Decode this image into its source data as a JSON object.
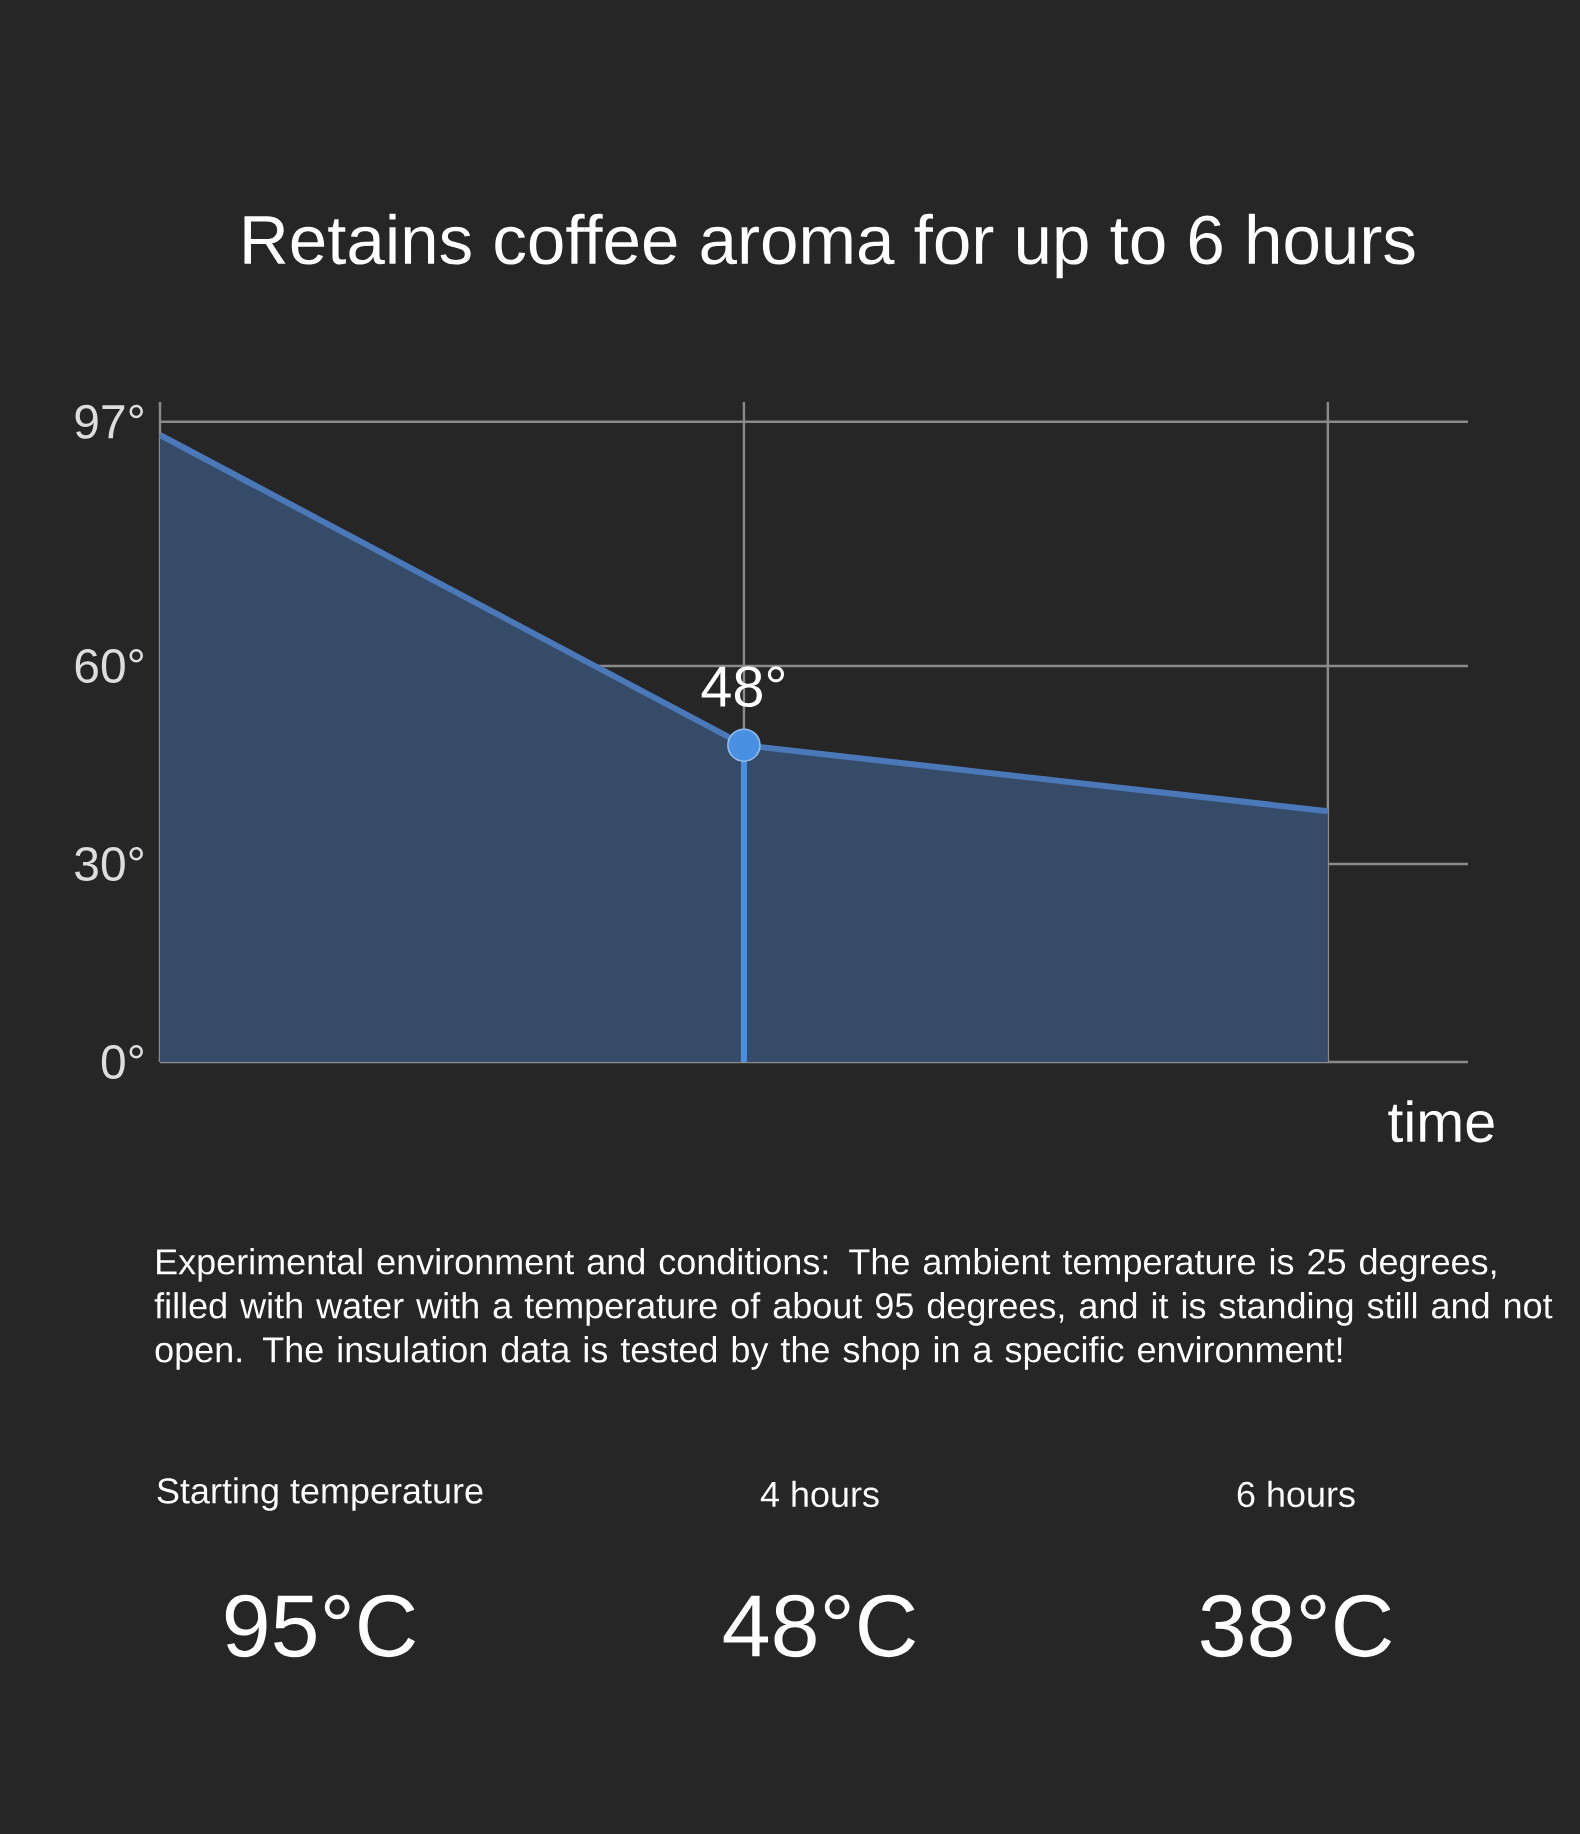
{
  "chart_data": {
    "type": "area",
    "title": "Retains coffee aroma for up to 6 hours",
    "xlabel": "time",
    "categories": [
      null,
      null,
      null
    ],
    "series": [
      {
        "color": "#4a78b8",
        "values": [
          95,
          48,
          38
        ],
        "value_labels": [
          null,
          "48°",
          null
        ]
      },
      {
        "type": "scatter",
        "color": "#4a90e2",
        "values": [
          null,
          48,
          null
        ],
        "marker": "circle"
      }
    ],
    "ylim": [
      0,
      100
    ],
    "yticks": [
      {
        "value": 0,
        "label": "0°"
      },
      {
        "value": 30,
        "label": "30°"
      },
      {
        "value": 60,
        "label": "60°"
      },
      {
        "value": 97,
        "label": "97°"
      }
    ],
    "tick_labels": "y",
    "grid": true,
    "annotations": [
      "Experimental environment and conditions: The ambient temperature is 25 degrees, filled with water with a temperature of about 95 degrees, and it is standing still and not open. The insulation data is tested by the shop in a specific environment!",
      "Starting temperature",
      "4 hours",
      "6 hours",
      "95°C",
      "48°C",
      "38°C"
    ]
  }
}
